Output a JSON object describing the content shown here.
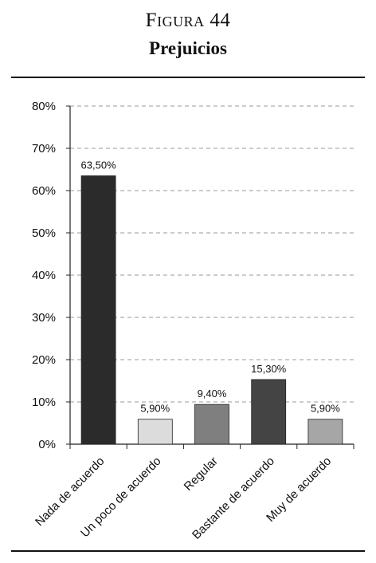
{
  "header": {
    "figure_label": "Figura 44",
    "title": "Prejuicios"
  },
  "chart_data": {
    "type": "bar",
    "categories": [
      "Nada de acuerdo",
      "Un poco de acuerdo",
      "Regular",
      "Bastante de acuerdo",
      "Muy de acuerdo"
    ],
    "values": [
      63.5,
      5.9,
      9.4,
      15.3,
      5.9
    ],
    "value_labels": [
      "63,50%",
      "5,90%",
      "9,40%",
      "15,30%",
      "5,90%"
    ],
    "bar_colors": [
      "#2b2b2b",
      "#dcdcdc",
      "#7f7f7f",
      "#444444",
      "#a6a6a6"
    ],
    "ylim": [
      0,
      80
    ],
    "yticks": [
      0,
      10,
      20,
      30,
      40,
      50,
      60,
      70,
      80
    ],
    "ytick_labels": [
      "0%",
      "10%",
      "20%",
      "30%",
      "40%",
      "50%",
      "60%",
      "70%",
      "80%"
    ],
    "grid": true,
    "legend": "none"
  }
}
